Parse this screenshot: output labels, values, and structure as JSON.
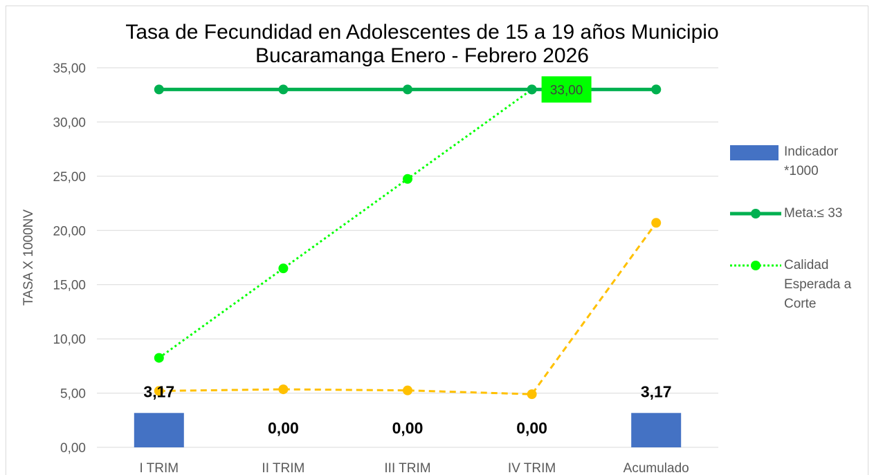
{
  "chart_data": {
    "type": "bar",
    "title_lines": [
      "Tasa de Fecundidad en Adolescentes de 15 a 19 años Municipio",
      "Bucaramanga Enero - Febrero  2026"
    ],
    "ylabel": "TASA X 1000NV",
    "xlabel": "",
    "ylim": [
      0,
      35
    ],
    "y_ticks": [
      "0,00",
      "5,00",
      "10,00",
      "15,00",
      "20,00",
      "25,00",
      "30,00",
      "35,00"
    ],
    "y_tick_values": [
      0,
      5,
      10,
      15,
      20,
      25,
      30,
      35
    ],
    "grid": true,
    "categories": [
      "I TRIM",
      "II TRIM",
      "III TRIM",
      "IV TRIM",
      "Acumulado"
    ],
    "series": [
      {
        "name": "Indicador *1000",
        "kind": "bar",
        "color": "#4472c4",
        "values": [
          3.17,
          0,
          0,
          0,
          3.17
        ],
        "data_labels": [
          "3,17",
          "0,00",
          "0,00",
          "0,00",
          "3,17"
        ]
      },
      {
        "name": "Meta:≤ 33",
        "kind": "line",
        "color": "#00b050",
        "values": [
          33,
          33,
          33,
          33,
          33
        ],
        "annotation": "33,00"
      },
      {
        "name": "Calidad Esperada a Corte",
        "kind": "line-dotted",
        "color": "#00ff00",
        "values": [
          8.25,
          16.5,
          24.75,
          33,
          33
        ]
      },
      {
        "name": "",
        "kind": "line-dashed",
        "color": "#ffc000",
        "values": [
          5.2,
          5.35,
          5.25,
          4.9,
          20.7
        ]
      }
    ],
    "legend_position": "right",
    "legend": [
      {
        "lines": [
          "Indicador",
          "*1000"
        ],
        "kind": "bar",
        "color": "#4472c4"
      },
      {
        "lines": [
          "Meta:≤ 33"
        ],
        "kind": "line",
        "color": "#00b050"
      },
      {
        "lines": [
          "Calidad",
          "Esperada a",
          "Corte"
        ],
        "kind": "line-dotted",
        "color": "#00ff00"
      }
    ]
  }
}
